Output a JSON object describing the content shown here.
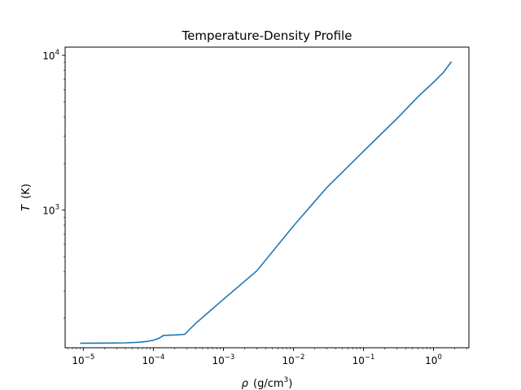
{
  "chart_data": {
    "type": "line",
    "title": "Temperature-Density Profile",
    "xlabel": {
      "symbol": "ρ",
      "unit_base": "(g/cm",
      "unit_exp": "3",
      "unit_close": ")"
    },
    "ylabel": {
      "symbol": "T",
      "unit": "(K)"
    },
    "xscale": "log",
    "yscale": "log",
    "xlim": [
      5.5e-06,
      3.2
    ],
    "ylim": [
      129,
      11300
    ],
    "grid": false,
    "line_color": "#1f77b4",
    "x_ticks": [
      {
        "value": 1e-05,
        "base": "10",
        "exp": "−5"
      },
      {
        "value": 0.0001,
        "base": "10",
        "exp": "−4"
      },
      {
        "value": 0.001,
        "base": "10",
        "exp": "−3"
      },
      {
        "value": 0.01,
        "base": "10",
        "exp": "−2"
      },
      {
        "value": 0.1,
        "base": "10",
        "exp": "−1"
      },
      {
        "value": 1,
        "base": "10",
        "exp": "0"
      }
    ],
    "y_ticks": [
      {
        "value": 1000,
        "base": "10",
        "exp": "3"
      },
      {
        "value": 10000,
        "base": "10",
        "exp": "4"
      }
    ],
    "series": [
      {
        "x": [
          9e-06,
          2e-05,
          4e-05,
          6e-05,
          8e-05,
          0.0001,
          0.00012,
          0.00014,
          0.0002,
          0.00028,
          0.0004,
          0.001,
          0.003,
          0.01,
          0.03,
          0.1,
          0.3,
          0.6,
          1.0,
          1.4,
          1.8
        ],
        "y": [
          138,
          138.2,
          138.7,
          139.8,
          141.5,
          144.3,
          148.5,
          155,
          156,
          157.5,
          185,
          265,
          405,
          790,
          1400,
          2400,
          3900,
          5400,
          6700,
          7800,
          9100
        ]
      }
    ]
  }
}
